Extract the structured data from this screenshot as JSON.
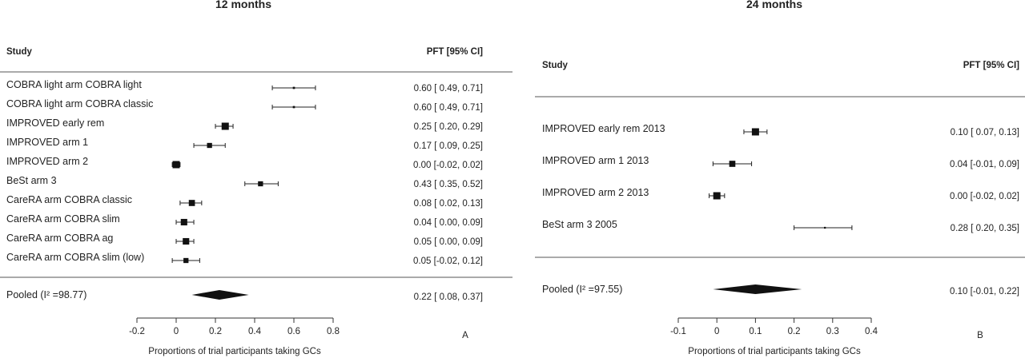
{
  "chart_data": [
    {
      "type": "forest",
      "title": "12 months",
      "panel_letter": "A",
      "study_header": "Study",
      "estimate_header": "PFT [95% CI]",
      "xlabel": "Proportions of trial participants taking GCs",
      "xlim": [
        -0.2,
        0.8
      ],
      "xticks": [
        "-0.2",
        "0",
        "0.2",
        "0.4",
        "0.6",
        "0.8"
      ],
      "studies": [
        {
          "label": "COBRA light arm COBRA light",
          "est": 0.6,
          "lo": 0.49,
          "hi": 0.71,
          "text": "0.60 [ 0.49, 0.71]",
          "weight": 0.3
        },
        {
          "label": "COBRA light arm COBRA classic",
          "est": 0.6,
          "lo": 0.49,
          "hi": 0.71,
          "text": "0.60 [ 0.49, 0.71]",
          "weight": 0.3
        },
        {
          "label": "IMPROVED early rem",
          "est": 0.25,
          "lo": 0.2,
          "hi": 0.29,
          "text": "0.25 [ 0.20, 0.29]",
          "weight": 1.0
        },
        {
          "label": "IMPROVED arm 1",
          "est": 0.17,
          "lo": 0.09,
          "hi": 0.25,
          "text": "0.17 [ 0.09, 0.25]",
          "weight": 0.7
        },
        {
          "label": "IMPROVED arm 2",
          "est": 0.0,
          "lo": -0.02,
          "hi": 0.02,
          "text": "0.00 [-0.02, 0.02]",
          "weight": 1.0
        },
        {
          "label": "BeSt arm 3",
          "est": 0.43,
          "lo": 0.35,
          "hi": 0.52,
          "text": "0.43 [ 0.35, 0.52]",
          "weight": 0.7
        },
        {
          "label": "CareRA arm COBRA classic",
          "est": 0.08,
          "lo": 0.02,
          "hi": 0.13,
          "text": "0.08 [ 0.02, 0.13]",
          "weight": 0.85
        },
        {
          "label": "CareRA arm COBRA slim",
          "est": 0.04,
          "lo": 0.0,
          "hi": 0.09,
          "text": "0.04 [ 0.00, 0.09]",
          "weight": 0.9
        },
        {
          "label": "CareRA arm COBRA ag",
          "est": 0.05,
          "lo": 0.0,
          "hi": 0.09,
          "text": "0.05 [ 0.00, 0.09]",
          "weight": 0.9
        },
        {
          "label": "CareRA arm COBRA slim (low)",
          "est": 0.05,
          "lo": -0.02,
          "hi": 0.12,
          "text": "0.05 [-0.02, 0.12]",
          "weight": 0.7
        }
      ],
      "pooled": {
        "label": "Pooled (I² =98.77)",
        "est": 0.22,
        "lo": 0.08,
        "hi": 0.37,
        "text": "0.22 [ 0.08, 0.37]"
      }
    },
    {
      "type": "forest",
      "title": "24 months",
      "panel_letter": "B",
      "study_header": "Study",
      "estimate_header": "PFT [95% CI]",
      "xlabel": "Proportions of trial participants taking GCs",
      "xlim": [
        -0.1,
        0.4
      ],
      "xticks": [
        "-0.1",
        "0",
        "0.1",
        "0.2",
        "0.3",
        "0.4"
      ],
      "studies": [
        {
          "label": "IMPROVED early rem 2013",
          "est": 0.1,
          "lo": 0.07,
          "hi": 0.13,
          "text": "0.10 [ 0.07, 0.13]",
          "weight": 1.0
        },
        {
          "label": "IMPROVED arm 1 2013",
          "est": 0.04,
          "lo": -0.01,
          "hi": 0.09,
          "text": "0.04 [-0.01, 0.09]",
          "weight": 0.85
        },
        {
          "label": "IMPROVED arm 2 2013",
          "est": 0.0,
          "lo": -0.02,
          "hi": 0.02,
          "text": "0.00 [-0.02, 0.02]",
          "weight": 1.0
        },
        {
          "label": "BeSt arm 3 2005",
          "est": 0.28,
          "lo": 0.2,
          "hi": 0.35,
          "text": "0.28 [ 0.20, 0.35]",
          "weight": 0.25
        }
      ],
      "pooled": {
        "label": "Pooled (I² =97.55)",
        "est": 0.1,
        "lo": -0.01,
        "hi": 0.22,
        "text": "0.10 [-0.01, 0.22]"
      }
    }
  ]
}
